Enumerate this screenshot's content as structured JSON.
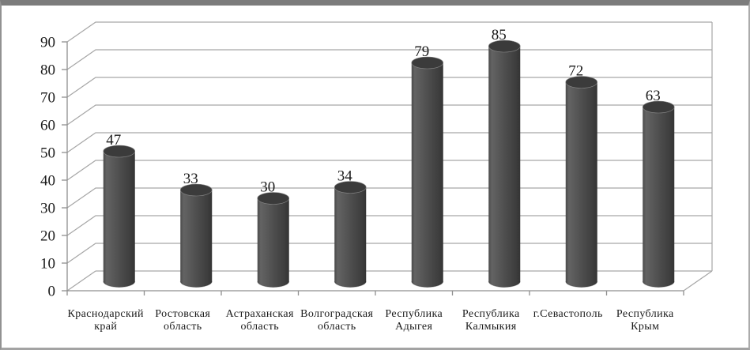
{
  "chart_data": {
    "type": "bar",
    "subtype": "3d-cylinder",
    "title": "",
    "xlabel": "",
    "ylabel": "",
    "categories": [
      "Краснодарский край",
      "Ростовская область",
      "Астраханская область",
      "Волгоградская область",
      "Республика Адыгея",
      "Республика Калмыкия",
      "г.Севастополь",
      "Республика Крым"
    ],
    "values": [
      47,
      33,
      30,
      34,
      79,
      85,
      72,
      63
    ],
    "yticks": [
      0,
      10,
      20,
      30,
      40,
      50,
      60,
      70,
      80,
      90
    ],
    "ylim": [
      0,
      90
    ],
    "grid": true,
    "legend": "none",
    "colors": {
      "bar_body": "#4a4a4a",
      "bar_body_light": "#636363",
      "bar_body_dark": "#343434",
      "bar_top": "#3b3b3b",
      "bar_top_rim": "#878787",
      "grid": "#a6a6a6",
      "axis": "#8f8f8f",
      "text": "#1a1a1a",
      "frame": "#7c7c7c"
    }
  }
}
